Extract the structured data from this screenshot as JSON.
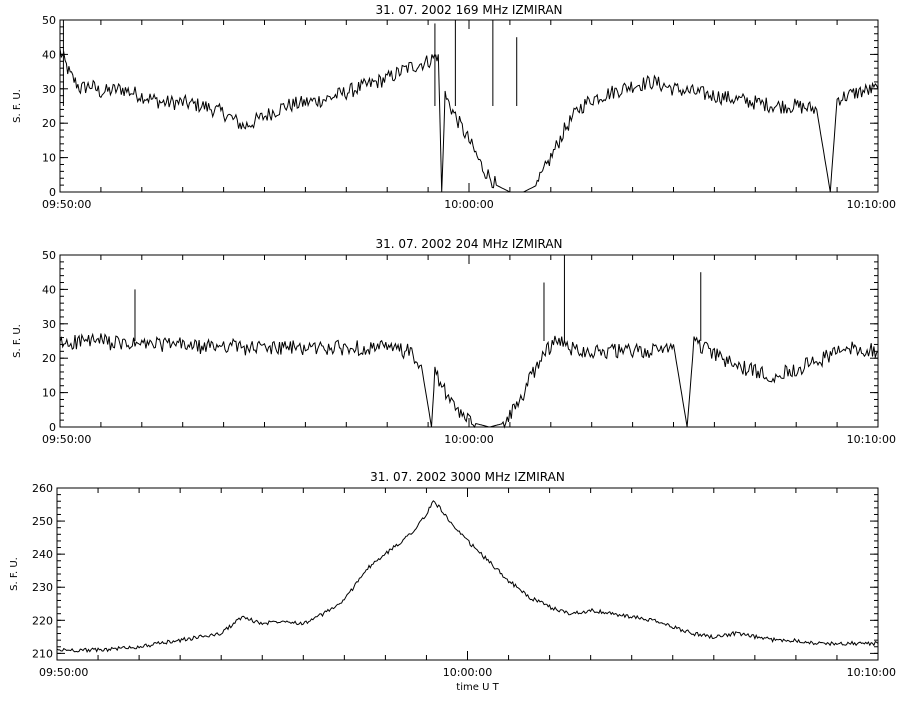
{
  "chart_data": [
    {
      "type": "line",
      "title": "31.  07.  2002    169 MHz    IZMIRAN",
      "ylabel": "S. F. U.",
      "xlabel": "",
      "xlim": [
        "09:50:00",
        "10:10:00"
      ],
      "ylim": [
        0,
        50
      ],
      "x_ticks": [
        "09:50:00",
        "10:00:00",
        "10:10:00"
      ],
      "y_ticks": [
        0,
        10,
        20,
        30,
        40,
        50
      ],
      "grid": false,
      "series": [
        {
          "points": [
            [
              "09:50:00",
              41
            ],
            [
              "09:50:15",
              34
            ],
            [
              "09:50:30",
              30
            ],
            [
              "09:50:45",
              31
            ],
            [
              "09:51:00",
              29
            ],
            [
              "09:51:30",
              30
            ],
            [
              "09:52:00",
              28
            ],
            [
              "09:52:30",
              26
            ],
            [
              "09:53:00",
              26
            ],
            [
              "09:53:30",
              25
            ],
            [
              "09:54:00",
              23
            ],
            [
              "09:54:30",
              19
            ],
            [
              "09:55:00",
              22
            ],
            [
              "09:55:30",
              25
            ],
            [
              "09:56:00",
              26
            ],
            [
              "09:56:30",
              27
            ],
            [
              "09:57:00",
              29
            ],
            [
              "09:57:30",
              31
            ],
            [
              "09:58:00",
              33
            ],
            [
              "09:58:30",
              36
            ],
            [
              "09:59:00",
              38
            ],
            [
              "09:59:15",
              40
            ],
            [
              "09:59:20",
              0
            ],
            [
              "09:59:25",
              28
            ],
            [
              "09:59:40",
              22
            ],
            [
              "10:00:00",
              15
            ],
            [
              "10:00:20",
              7
            ],
            [
              "10:00:40",
              2
            ],
            [
              "10:01:00",
              0
            ],
            [
              "10:01:20",
              0
            ],
            [
              "10:01:40",
              2
            ],
            [
              "10:02:00",
              10
            ],
            [
              "10:02:20",
              18
            ],
            [
              "10:02:40",
              24
            ],
            [
              "10:03:00",
              27
            ],
            [
              "10:03:30",
              29
            ],
            [
              "10:04:00",
              31
            ],
            [
              "10:04:30",
              32
            ],
            [
              "10:05:00",
              30
            ],
            [
              "10:05:30",
              29
            ],
            [
              "10:06:00",
              28
            ],
            [
              "10:06:30",
              27
            ],
            [
              "10:07:00",
              26
            ],
            [
              "10:07:30",
              25
            ],
            [
              "10:08:00",
              25
            ],
            [
              "10:08:30",
              24
            ],
            [
              "10:08:50",
              0
            ],
            [
              "10:09:00",
              27
            ],
            [
              "10:09:30",
              29
            ],
            [
              "10:10:00",
              30
            ]
          ]
        }
      ],
      "spikes": [
        [
          "09:50:05",
          50
        ],
        [
          "09:59:10",
          49
        ],
        [
          "09:59:40",
          50
        ],
        [
          "10:00:35",
          50
        ],
        [
          "10:01:10",
          45
        ]
      ]
    },
    {
      "type": "line",
      "title": "31.  07.  2002    204 MHz    IZMIRAN",
      "ylabel": "S. F. U.",
      "xlabel": "",
      "xlim": [
        "09:50:00",
        "10:10:00"
      ],
      "ylim": [
        0,
        50
      ],
      "x_ticks": [
        "09:50:00",
        "10:00:00",
        "10:10:00"
      ],
      "y_ticks": [
        0,
        10,
        20,
        30,
        40,
        50
      ],
      "grid": false,
      "series": [
        {
          "points": [
            [
              "09:50:00",
              24
            ],
            [
              "09:50:30",
              25
            ],
            [
              "09:51:00",
              25
            ],
            [
              "09:51:30",
              24
            ],
            [
              "09:52:00",
              24
            ],
            [
              "09:52:30",
              24
            ],
            [
              "09:53:00",
              24
            ],
            [
              "09:53:30",
              23
            ],
            [
              "09:54:00",
              24
            ],
            [
              "09:54:30",
              23
            ],
            [
              "09:55:00",
              23
            ],
            [
              "09:55:30",
              23
            ],
            [
              "09:56:00",
              23
            ],
            [
              "09:56:30",
              23
            ],
            [
              "09:57:00",
              23
            ],
            [
              "09:57:30",
              23
            ],
            [
              "09:58:00",
              23
            ],
            [
              "09:58:30",
              22
            ],
            [
              "09:58:50",
              18
            ],
            [
              "09:59:05",
              0
            ],
            [
              "09:59:10",
              16
            ],
            [
              "09:59:30",
              8
            ],
            [
              "09:59:50",
              3
            ],
            [
              "10:00:10",
              1
            ],
            [
              "10:00:30",
              0
            ],
            [
              "10:00:50",
              1
            ],
            [
              "10:01:10",
              6
            ],
            [
              "10:01:30",
              14
            ],
            [
              "10:01:50",
              22
            ],
            [
              "10:02:10",
              25
            ],
            [
              "10:02:30",
              23
            ],
            [
              "10:03:00",
              22
            ],
            [
              "10:03:30",
              22
            ],
            [
              "10:04:00",
              22
            ],
            [
              "10:04:30",
              22
            ],
            [
              "10:05:00",
              24
            ],
            [
              "10:05:20",
              0
            ],
            [
              "10:05:30",
              25
            ],
            [
              "10:06:00",
              21
            ],
            [
              "10:06:30",
              18
            ],
            [
              "10:07:00",
              16
            ],
            [
              "10:07:30",
              15
            ],
            [
              "10:08:00",
              17
            ],
            [
              "10:08:30",
              19
            ],
            [
              "10:09:00",
              22
            ],
            [
              "10:09:30",
              23
            ],
            [
              "10:10:00",
              22
            ]
          ]
        }
      ],
      "spikes": [
        [
          "09:51:50",
          40
        ],
        [
          "10:01:50",
          42
        ],
        [
          "10:02:20",
          50
        ],
        [
          "10:05:40",
          45
        ]
      ]
    },
    {
      "type": "line",
      "title": "31.  07.  2002    3000 MHz    IZMIRAN",
      "ylabel": "S. F. U.",
      "xlabel": "time  U T",
      "xlim": [
        "09:50:00",
        "10:10:00"
      ],
      "ylim": [
        208,
        260
      ],
      "x_ticks": [
        "09:50:00",
        "10:00:00",
        "10:10:00"
      ],
      "y_ticks": [
        210,
        220,
        230,
        240,
        250,
        260
      ],
      "grid": false,
      "series": [
        {
          "points": [
            [
              "09:50:00",
              211
            ],
            [
              "09:51:00",
              211
            ],
            [
              "09:52:00",
              212
            ],
            [
              "09:53:00",
              214
            ],
            [
              "09:54:00",
              216
            ],
            [
              "09:54:30",
              221
            ],
            [
              "09:55:00",
              219
            ],
            [
              "09:55:30",
              220
            ],
            [
              "09:56:00",
              219
            ],
            [
              "09:56:30",
              222
            ],
            [
              "09:57:00",
              226
            ],
            [
              "09:57:30",
              235
            ],
            [
              "09:58:00",
              240
            ],
            [
              "09:58:30",
              245
            ],
            [
              "09:58:45",
              248
            ],
            [
              "09:59:00",
              252
            ],
            [
              "09:59:10",
              256
            ],
            [
              "09:59:20",
              254
            ],
            [
              "09:59:40",
              248
            ],
            [
              "10:00:00",
              244
            ],
            [
              "10:00:30",
              238
            ],
            [
              "10:01:00",
              232
            ],
            [
              "10:01:30",
              227
            ],
            [
              "10:02:00",
              224
            ],
            [
              "10:02:30",
              222
            ],
            [
              "10:03:00",
              223
            ],
            [
              "10:03:30",
              222
            ],
            [
              "10:04:00",
              221
            ],
            [
              "10:04:30",
              220
            ],
            [
              "10:05:00",
              218
            ],
            [
              "10:05:30",
              216
            ],
            [
              "10:06:00",
              215
            ],
            [
              "10:06:30",
              216
            ],
            [
              "10:07:00",
              215
            ],
            [
              "10:07:30",
              214
            ],
            [
              "10:08:00",
              214
            ],
            [
              "10:08:30",
              213
            ],
            [
              "10:09:00",
              213
            ],
            [
              "10:09:30",
              213
            ],
            [
              "10:10:00",
              213
            ]
          ]
        }
      ],
      "spikes": []
    }
  ]
}
